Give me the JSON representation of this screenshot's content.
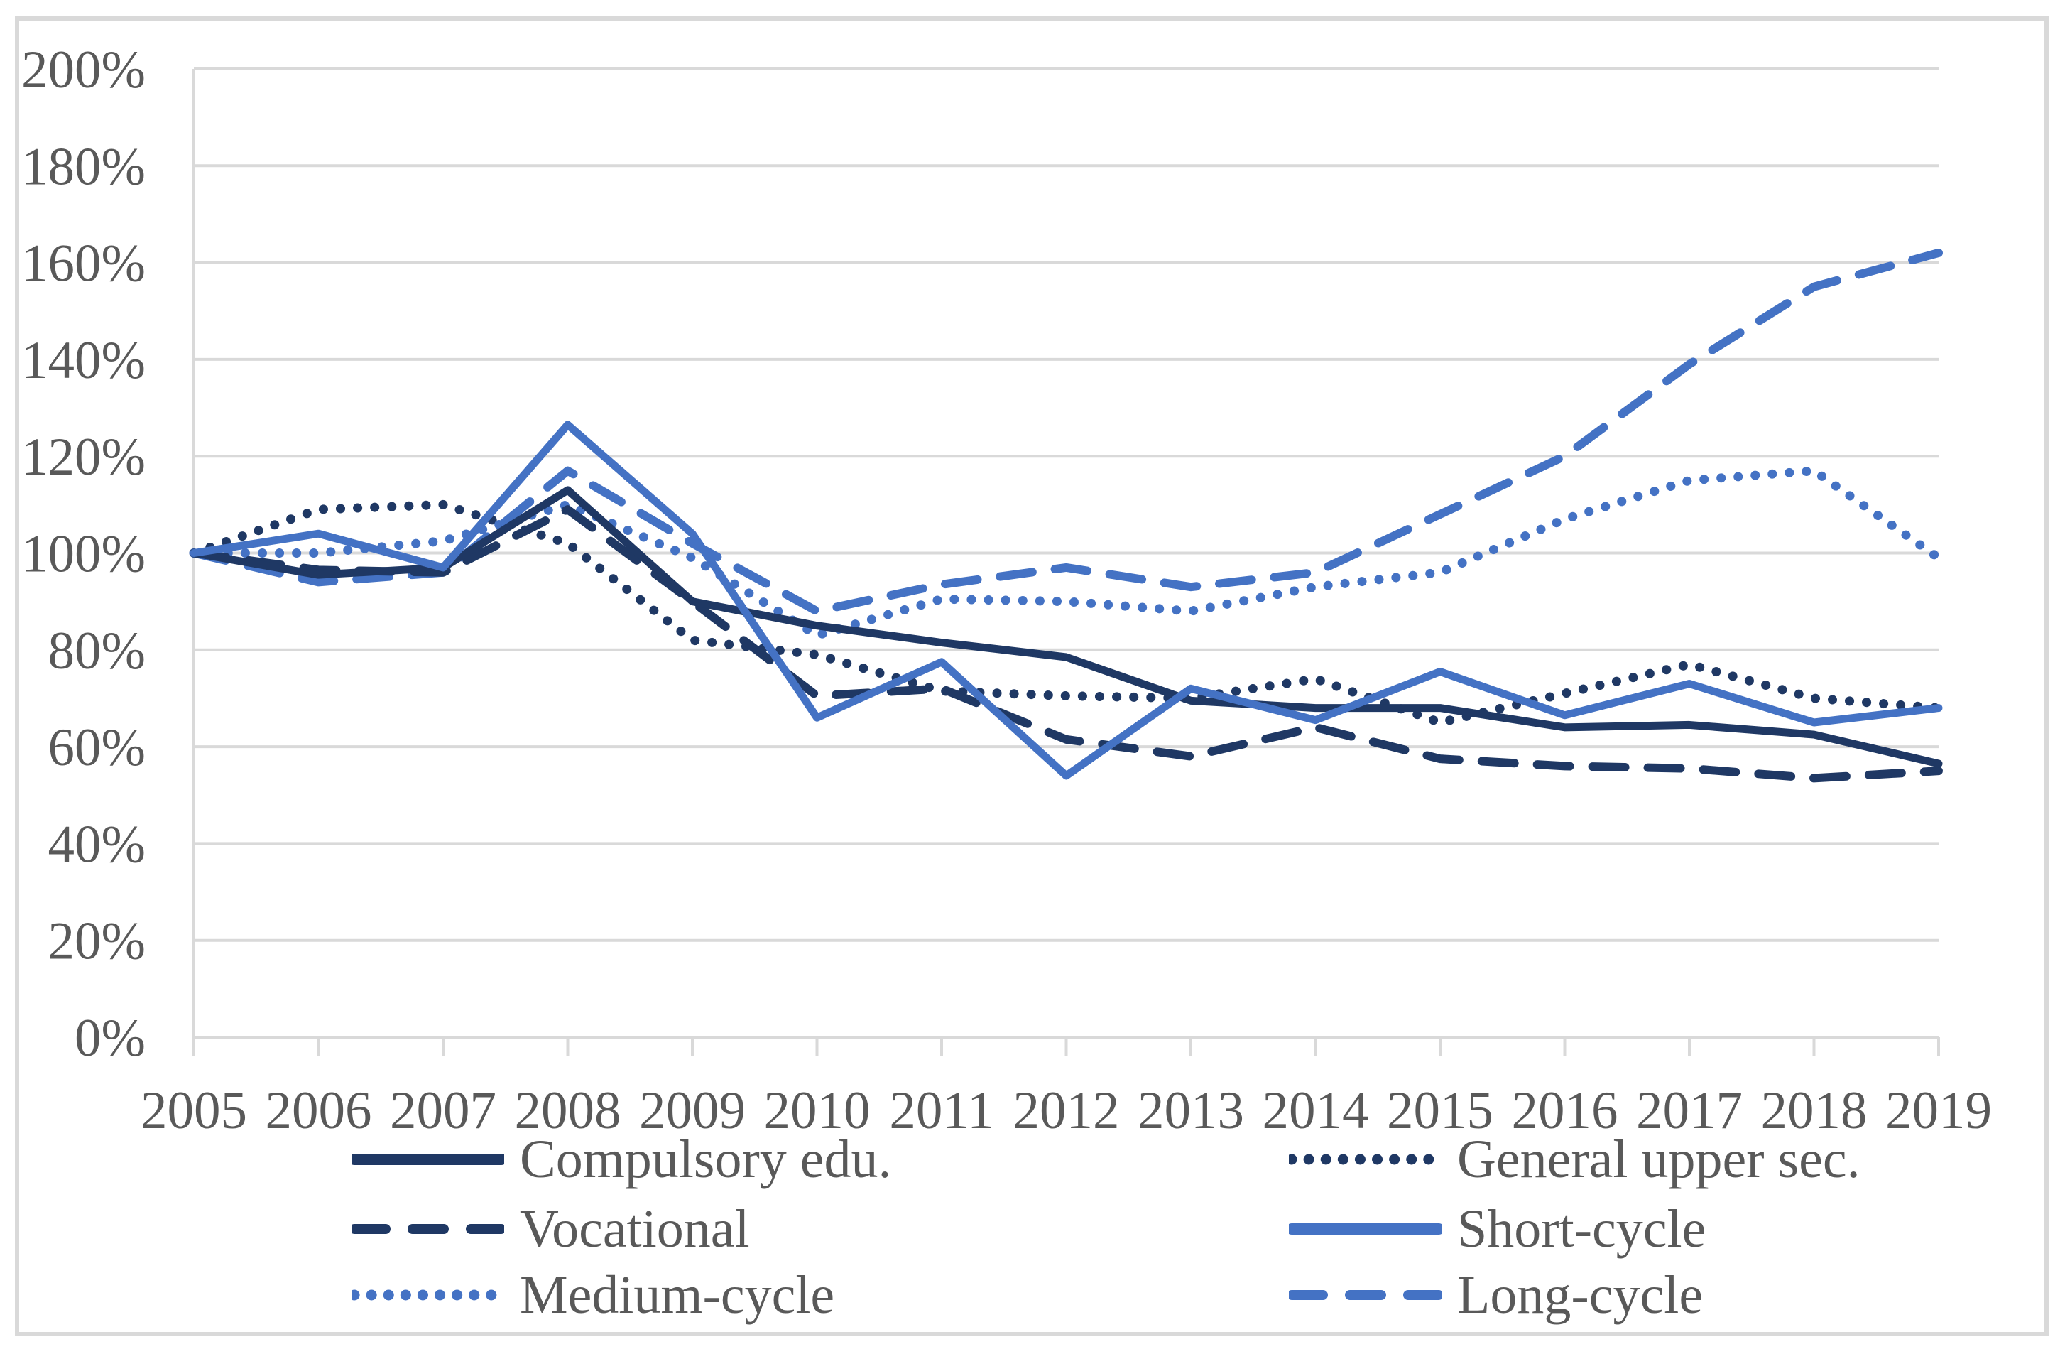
{
  "chart_data": {
    "type": "line",
    "categories": [
      "2005",
      "2006",
      "2007",
      "2008",
      "2009",
      "2010",
      "2011",
      "2012",
      "2013",
      "2014",
      "2015",
      "2016",
      "2017",
      "2018",
      "2019"
    ],
    "y_axis": {
      "min": 0,
      "max": 200,
      "step": 20,
      "ticks": [
        "0%",
        "20%",
        "40%",
        "60%",
        "80%",
        "100%",
        "120%",
        "140%",
        "160%",
        "180%",
        "200%"
      ]
    },
    "grid": true,
    "legend_position": "bottom",
    "legend_columns": 2,
    "series": [
      {
        "name": "Compulsory edu.",
        "color": "#1F3864",
        "line_style": "solid",
        "values": [
          100,
          95.5,
          97,
          113,
          90,
          85,
          81.5,
          78.5,
          69.5,
          68,
          68,
          64,
          64.5,
          62.5,
          56.5
        ]
      },
      {
        "name": "General upper sec.",
        "color": "#1F3864",
        "line_style": "dotted",
        "values": [
          100,
          109,
          110,
          102,
          82,
          79,
          71.5,
          70.5,
          70,
          74,
          65,
          71,
          77,
          70,
          68
        ]
      },
      {
        "name": "Vocational",
        "color": "#1F3864",
        "line_style": "dashed",
        "values": [
          100,
          96.5,
          96,
          109,
          90,
          70.5,
          72,
          61.5,
          58,
          64,
          57.5,
          56,
          55.5,
          53.5,
          55
        ]
      },
      {
        "name": "Short-cycle",
        "color": "#4472C4",
        "line_style": "solid",
        "values": [
          100,
          104,
          97,
          126.5,
          104,
          66,
          77.5,
          54,
          72,
          65.5,
          75.5,
          66.5,
          73,
          65,
          68
        ]
      },
      {
        "name": "Medium-cycle",
        "color": "#4472C4",
        "line_style": "dotted",
        "values": [
          100,
          100,
          102.5,
          110,
          99,
          83,
          90.5,
          90,
          88,
          93,
          96,
          107,
          115,
          117,
          99
        ]
      },
      {
        "name": "Long-cycle",
        "color": "#4472C4",
        "line_style": "dashed",
        "values": [
          100,
          94,
          96,
          117,
          102,
          88,
          93.5,
          97,
          93,
          96,
          108,
          120,
          139,
          155,
          162
        ]
      }
    ],
    "colors": {
      "dark_blue": "#1F3864",
      "medium_blue": "#4472C4",
      "gridline": "#D9D9D9",
      "frame_border": "#D9D9D9",
      "axis_text": "#595959"
    }
  }
}
